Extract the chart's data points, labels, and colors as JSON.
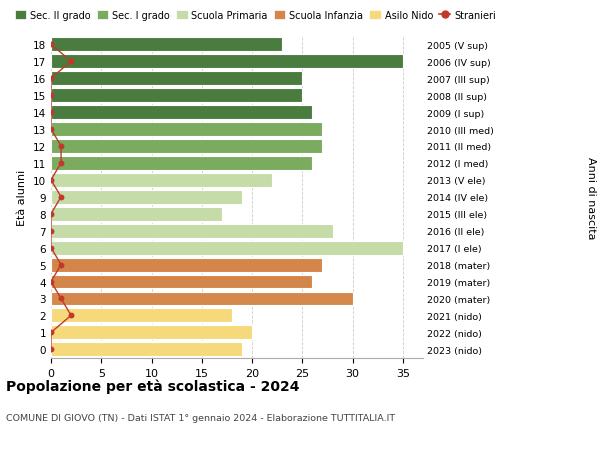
{
  "ages": [
    18,
    17,
    16,
    15,
    14,
    13,
    12,
    11,
    10,
    9,
    8,
    7,
    6,
    5,
    4,
    3,
    2,
    1,
    0
  ],
  "right_labels": [
    "2005 (V sup)",
    "2006 (IV sup)",
    "2007 (III sup)",
    "2008 (II sup)",
    "2009 (I sup)",
    "2010 (III med)",
    "2011 (II med)",
    "2012 (I med)",
    "2013 (V ele)",
    "2014 (IV ele)",
    "2015 (III ele)",
    "2016 (II ele)",
    "2017 (I ele)",
    "2018 (mater)",
    "2019 (mater)",
    "2020 (mater)",
    "2021 (nido)",
    "2022 (nido)",
    "2023 (nido)"
  ],
  "bar_values": [
    23,
    35,
    25,
    25,
    26,
    27,
    27,
    26,
    22,
    19,
    17,
    28,
    35,
    27,
    26,
    30,
    18,
    20,
    19
  ],
  "bar_colors": [
    "#4a7c3f",
    "#4a7c3f",
    "#4a7c3f",
    "#4a7c3f",
    "#4a7c3f",
    "#7aab5e",
    "#7aab5e",
    "#7aab5e",
    "#c5dca8",
    "#c5dca8",
    "#c5dca8",
    "#c5dca8",
    "#c5dca8",
    "#d4864a",
    "#d4864a",
    "#d4884d",
    "#f5d97a",
    "#f5d97a",
    "#f5d97a"
  ],
  "stranieri_values": [
    0,
    2,
    0,
    0,
    0,
    0,
    1,
    1,
    0,
    1,
    0,
    0,
    0,
    1,
    0,
    1,
    2,
    0,
    0
  ],
  "legend_labels": [
    "Sec. II grado",
    "Sec. I grado",
    "Scuola Primaria",
    "Scuola Infanzia",
    "Asilo Nido",
    "Stranieri"
  ],
  "legend_colors": [
    "#4a7c3f",
    "#7aab5e",
    "#c5dca8",
    "#d4864a",
    "#f5d97a",
    "#c0392b"
  ],
  "title": "Popolazione per età scolastica - 2024",
  "subtitle": "COMUNE DI GIOVO (TN) - Dati ISTAT 1° gennaio 2024 - Elaborazione TUTTITALIA.IT",
  "ylabel_left": "Età alunni",
  "ylabel_right": "Anni di nascita",
  "xlim": [
    0,
    37
  ],
  "ylim": [
    -0.5,
    18.5
  ],
  "bg_color": "#ffffff",
  "grid_color": "#cccccc"
}
